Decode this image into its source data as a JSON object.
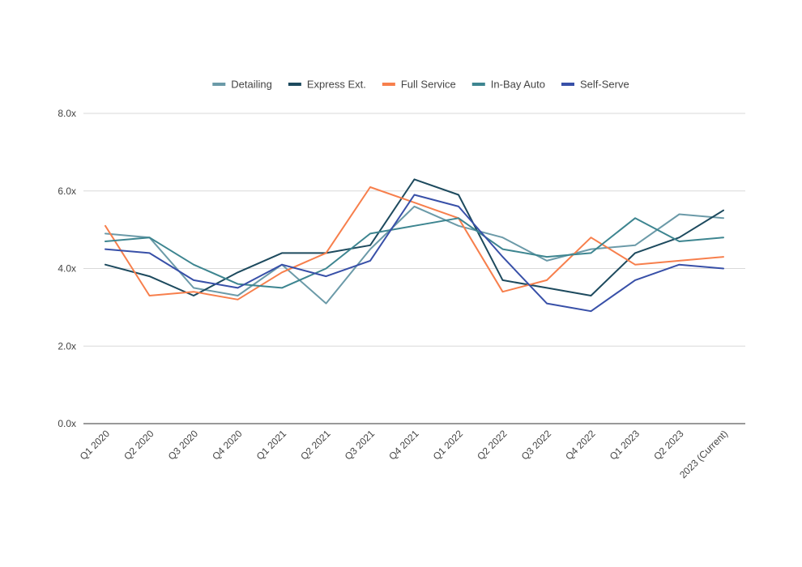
{
  "chart_data": {
    "type": "line",
    "title": "",
    "xlabel": "",
    "ylabel": "",
    "categories": [
      "Q1 2020",
      "Q2 2020",
      "Q3 2020",
      "Q4 2020",
      "Q1 2021",
      "Q2 2021",
      "Q3 2021",
      "Q4 2021",
      "Q1 2022",
      "Q2 2022",
      "Q3 2022",
      "Q4 2022",
      "Q1 2023",
      "Q2 2023",
      "2023 (Current)"
    ],
    "ylim": [
      0,
      8
    ],
    "yticks": [
      "0.0x",
      "2.0x",
      "4.0x",
      "6.0x",
      "8.0x"
    ],
    "ytick_values": [
      0,
      2,
      4,
      6,
      8
    ],
    "grid": true,
    "legend_position": "top",
    "series": [
      {
        "name": "Detailing",
        "color": "#6b9aa8",
        "values": [
          4.9,
          4.8,
          3.5,
          3.3,
          4.1,
          3.1,
          4.5,
          5.6,
          5.1,
          4.8,
          4.2,
          4.5,
          4.6,
          5.4,
          5.3
        ]
      },
      {
        "name": "Express Ext.",
        "color": "#1d4a5e",
        "values": [
          4.1,
          3.8,
          3.3,
          3.9,
          4.4,
          4.4,
          4.6,
          6.3,
          5.9,
          3.7,
          3.5,
          3.3,
          4.4,
          4.8,
          5.5
        ]
      },
      {
        "name": "Full Service",
        "color": "#f77f4c",
        "values": [
          5.1,
          3.3,
          3.4,
          3.2,
          3.9,
          4.4,
          6.1,
          5.7,
          5.3,
          3.4,
          3.7,
          4.8,
          4.1,
          4.2,
          4.3
        ]
      },
      {
        "name": "In-Bay Auto",
        "color": "#3d8590",
        "values": [
          4.7,
          4.8,
          4.1,
          3.6,
          3.5,
          4.0,
          4.9,
          5.1,
          5.3,
          4.5,
          4.3,
          4.4,
          5.3,
          4.7,
          4.8
        ]
      },
      {
        "name": "Self-Serve",
        "color": "#3850a8",
        "values": [
          4.5,
          4.4,
          3.7,
          3.5,
          4.1,
          3.8,
          4.2,
          5.9,
          5.6,
          4.3,
          3.1,
          2.9,
          3.7,
          4.1,
          4.0
        ]
      }
    ]
  }
}
